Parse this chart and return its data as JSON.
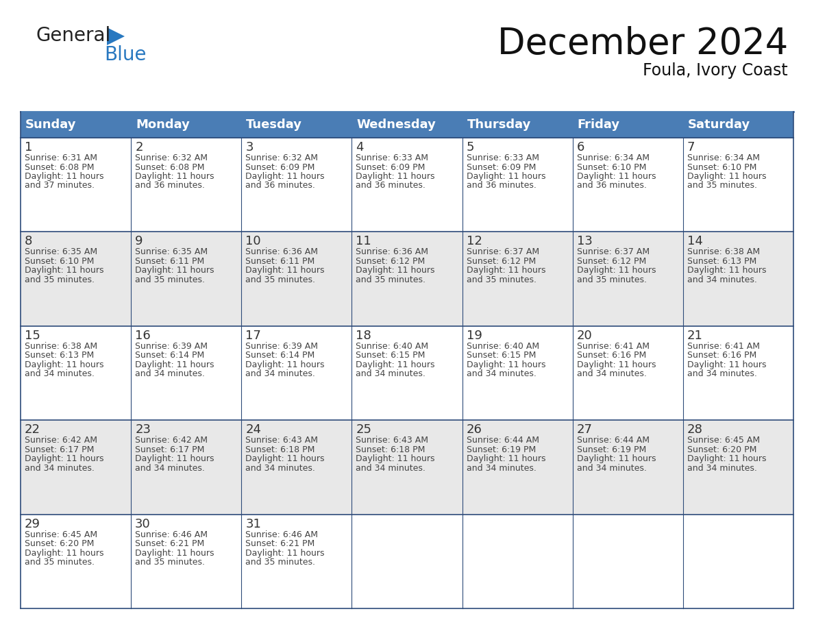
{
  "title": "December 2024",
  "subtitle": "Foula, Ivory Coast",
  "header_color": "#4A7DB5",
  "header_text_color": "#FFFFFF",
  "days_of_week": [
    "Sunday",
    "Monday",
    "Tuesday",
    "Wednesday",
    "Thursday",
    "Friday",
    "Saturday"
  ],
  "bg_color": "#FFFFFF",
  "cell_bg_white": "#FFFFFF",
  "cell_bg_grey": "#E8E8E8",
  "grid_line_color": "#2E4B7A",
  "day_number_color": "#333333",
  "text_color": "#444444",
  "calendar_data": [
    [
      {
        "day": 1,
        "sunrise": "6:31 AM",
        "sunset": "6:08 PM",
        "daylight": "11 hours and 37 minutes."
      },
      {
        "day": 2,
        "sunrise": "6:32 AM",
        "sunset": "6:08 PM",
        "daylight": "11 hours and 36 minutes."
      },
      {
        "day": 3,
        "sunrise": "6:32 AM",
        "sunset": "6:09 PM",
        "daylight": "11 hours and 36 minutes."
      },
      {
        "day": 4,
        "sunrise": "6:33 AM",
        "sunset": "6:09 PM",
        "daylight": "11 hours and 36 minutes."
      },
      {
        "day": 5,
        "sunrise": "6:33 AM",
        "sunset": "6:09 PM",
        "daylight": "11 hours and 36 minutes."
      },
      {
        "day": 6,
        "sunrise": "6:34 AM",
        "sunset": "6:10 PM",
        "daylight": "11 hours and 36 minutes."
      },
      {
        "day": 7,
        "sunrise": "6:34 AM",
        "sunset": "6:10 PM",
        "daylight": "11 hours and 35 minutes."
      }
    ],
    [
      {
        "day": 8,
        "sunrise": "6:35 AM",
        "sunset": "6:10 PM",
        "daylight": "11 hours and 35 minutes."
      },
      {
        "day": 9,
        "sunrise": "6:35 AM",
        "sunset": "6:11 PM",
        "daylight": "11 hours and 35 minutes."
      },
      {
        "day": 10,
        "sunrise": "6:36 AM",
        "sunset": "6:11 PM",
        "daylight": "11 hours and 35 minutes."
      },
      {
        "day": 11,
        "sunrise": "6:36 AM",
        "sunset": "6:12 PM",
        "daylight": "11 hours and 35 minutes."
      },
      {
        "day": 12,
        "sunrise": "6:37 AM",
        "sunset": "6:12 PM",
        "daylight": "11 hours and 35 minutes."
      },
      {
        "day": 13,
        "sunrise": "6:37 AM",
        "sunset": "6:12 PM",
        "daylight": "11 hours and 35 minutes."
      },
      {
        "day": 14,
        "sunrise": "6:38 AM",
        "sunset": "6:13 PM",
        "daylight": "11 hours and 34 minutes."
      }
    ],
    [
      {
        "day": 15,
        "sunrise": "6:38 AM",
        "sunset": "6:13 PM",
        "daylight": "11 hours and 34 minutes."
      },
      {
        "day": 16,
        "sunrise": "6:39 AM",
        "sunset": "6:14 PM",
        "daylight": "11 hours and 34 minutes."
      },
      {
        "day": 17,
        "sunrise": "6:39 AM",
        "sunset": "6:14 PM",
        "daylight": "11 hours and 34 minutes."
      },
      {
        "day": 18,
        "sunrise": "6:40 AM",
        "sunset": "6:15 PM",
        "daylight": "11 hours and 34 minutes."
      },
      {
        "day": 19,
        "sunrise": "6:40 AM",
        "sunset": "6:15 PM",
        "daylight": "11 hours and 34 minutes."
      },
      {
        "day": 20,
        "sunrise": "6:41 AM",
        "sunset": "6:16 PM",
        "daylight": "11 hours and 34 minutes."
      },
      {
        "day": 21,
        "sunrise": "6:41 AM",
        "sunset": "6:16 PM",
        "daylight": "11 hours and 34 minutes."
      }
    ],
    [
      {
        "day": 22,
        "sunrise": "6:42 AM",
        "sunset": "6:17 PM",
        "daylight": "11 hours and 34 minutes."
      },
      {
        "day": 23,
        "sunrise": "6:42 AM",
        "sunset": "6:17 PM",
        "daylight": "11 hours and 34 minutes."
      },
      {
        "day": 24,
        "sunrise": "6:43 AM",
        "sunset": "6:18 PM",
        "daylight": "11 hours and 34 minutes."
      },
      {
        "day": 25,
        "sunrise": "6:43 AM",
        "sunset": "6:18 PM",
        "daylight": "11 hours and 34 minutes."
      },
      {
        "day": 26,
        "sunrise": "6:44 AM",
        "sunset": "6:19 PM",
        "daylight": "11 hours and 34 minutes."
      },
      {
        "day": 27,
        "sunrise": "6:44 AM",
        "sunset": "6:19 PM",
        "daylight": "11 hours and 34 minutes."
      },
      {
        "day": 28,
        "sunrise": "6:45 AM",
        "sunset": "6:20 PM",
        "daylight": "11 hours and 34 minutes."
      }
    ],
    [
      {
        "day": 29,
        "sunrise": "6:45 AM",
        "sunset": "6:20 PM",
        "daylight": "11 hours and 35 minutes."
      },
      {
        "day": 30,
        "sunrise": "6:46 AM",
        "sunset": "6:21 PM",
        "daylight": "11 hours and 35 minutes."
      },
      {
        "day": 31,
        "sunrise": "6:46 AM",
        "sunset": "6:21 PM",
        "daylight": "11 hours and 35 minutes."
      },
      null,
      null,
      null,
      null
    ]
  ],
  "logo_text1": "General",
  "logo_text2": "Blue",
  "logo_color1": "#222222",
  "logo_color2": "#2878C0",
  "logo_triangle_color": "#2878C0",
  "title_fontsize": 38,
  "subtitle_fontsize": 17,
  "header_fontsize": 13,
  "day_num_fontsize": 13,
  "cell_text_fontsize": 9
}
